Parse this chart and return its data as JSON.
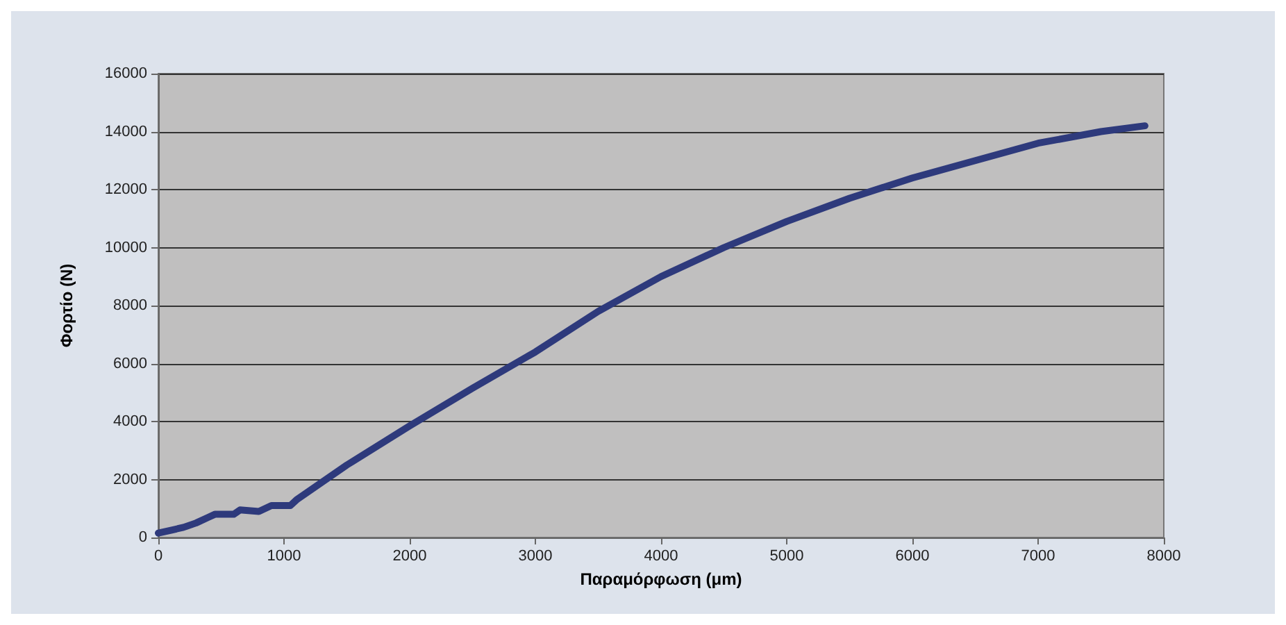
{
  "chart_data": {
    "type": "line",
    "xlabel": "Παραμόρφωση (μm)",
    "ylabel": "Φορτίο (N)",
    "x": [
      0,
      100,
      200,
      300,
      400,
      450,
      600,
      650,
      800,
      900,
      1050,
      1100,
      1300,
      1500,
      2000,
      2500,
      3000,
      3500,
      4000,
      4500,
      5000,
      5500,
      6000,
      6500,
      7000,
      7500,
      7850
    ],
    "series": [
      {
        "color": "#2e3a7c",
        "values": [
          150,
          250,
          350,
          500,
          700,
          800,
          800,
          950,
          900,
          1100,
          1100,
          1300,
          1900,
          2500,
          3850,
          5150,
          6400,
          7800,
          9000,
          10000,
          10900,
          11700,
          12400,
          13000,
          13600,
          14000,
          14200
        ]
      }
    ],
    "xlim": [
      0,
      8000
    ],
    "xticks": [
      0,
      1000,
      2000,
      3000,
      4000,
      5000,
      6000,
      7000,
      8000
    ],
    "ylim": [
      0,
      16000
    ],
    "yticks": [
      0,
      2000,
      4000,
      6000,
      8000,
      10000,
      12000,
      14000,
      16000
    ],
    "grid": "y",
    "marker": "none",
    "line_style": "solid"
  }
}
